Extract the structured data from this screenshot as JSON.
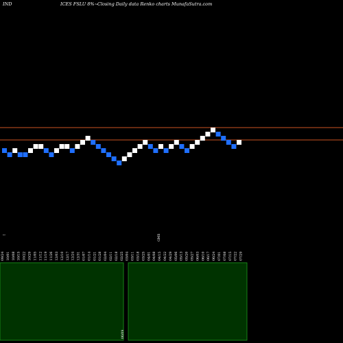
{
  "header": {
    "left": "IND",
    "middle": "ICES FSLU 8%~",
    "right": "Closing Daily data  Renko  charts MunafaSutra.com"
  },
  "colors": {
    "background": "#000000",
    "up_brick": "#ffffff",
    "down_brick": "#1f6fff",
    "level_line": "#cc5522",
    "volume_fill": "#003300",
    "volume_edge": "#1e9a1e"
  },
  "chart_data": {
    "type": "renko",
    "title": "ICES FSLU 8%~ Closing Daily data Renko charts",
    "brick_direction": [
      "down",
      "down",
      "up",
      "down",
      "down",
      "up",
      "up",
      "up",
      "down",
      "down",
      "up",
      "up",
      "up",
      "down",
      "up",
      "up",
      "up",
      "down",
      "down",
      "down",
      "down",
      "down",
      "down",
      "up",
      "up",
      "up",
      "up",
      "up",
      "down",
      "down",
      "up",
      "down",
      "up",
      "up",
      "down",
      "down",
      "up",
      "up",
      "up",
      "up",
      "up",
      "down",
      "down",
      "down",
      "down",
      "up"
    ],
    "brick_level": [
      0,
      -1,
      0,
      -1,
      -1,
      0,
      1,
      1,
      0,
      -1,
      0,
      1,
      1,
      0,
      1,
      2,
      3,
      2,
      1,
      0,
      -1,
      -2,
      -3,
      -2,
      -1,
      0,
      1,
      2,
      1,
      0,
      1,
      0,
      1,
      2,
      1,
      0,
      1,
      2,
      3,
      4,
      5,
      4,
      3,
      2,
      1,
      2
    ],
    "reference_lines": [
      "upper",
      "lower"
    ],
    "x_tick_labels": [
      "09/24",
      "10/01",
      "10/08",
      "10/15",
      "10/22",
      "10/29",
      "11/05",
      "11/12",
      "11/19",
      "11/26",
      "12/03",
      "12/10",
      "12/17",
      "12/24",
      "12/31",
      "01/07",
      "01/14",
      "01/21",
      "01/28",
      "02/04",
      "02/11",
      "02/18",
      "02/25",
      "03/04",
      "03/11",
      "03/18",
      "03/25",
      "04/01",
      "04/08",
      "04/15",
      "04/22",
      "04/29",
      "05/06",
      "05/13",
      "05/20",
      "05/27",
      "06/03",
      "06/10",
      "06/17",
      "06/24",
      "07/01",
      "07/08",
      "07/15",
      "07/22",
      "07/29"
    ],
    "side_labels": {
      "left_small": "ꟷ",
      "mid_small": "GMS",
      "volume_low": "06/09"
    },
    "volume_panels": 2
  }
}
